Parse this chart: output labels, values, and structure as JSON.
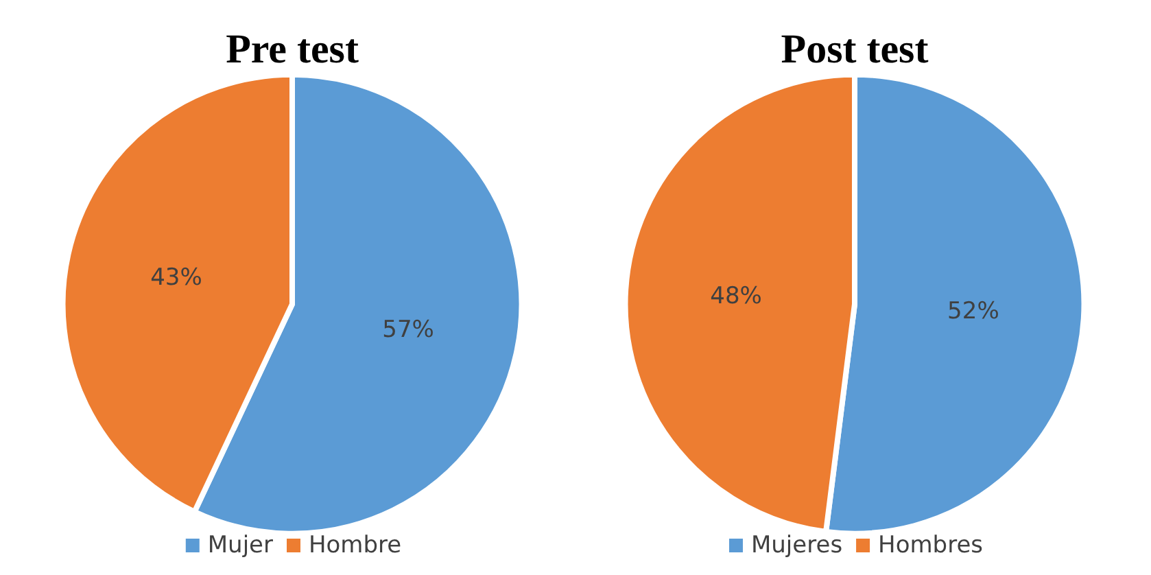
{
  "chart_data": [
    {
      "type": "pie",
      "title": "Pre test",
      "categories": [
        "Mujer",
        "Hombre"
      ],
      "values": [
        57,
        43
      ],
      "value_labels": [
        "57%",
        "43%"
      ],
      "colors": [
        "#5b9bd5",
        "#ed7d31"
      ],
      "legend": "bottom"
    },
    {
      "type": "pie",
      "title": "Post test",
      "categories": [
        "Mujeres",
        "Hombres"
      ],
      "values": [
        52,
        48
      ],
      "value_labels": [
        "52%",
        "48%"
      ],
      "colors": [
        "#5b9bd5",
        "#ed7d31"
      ],
      "legend": "bottom"
    }
  ]
}
